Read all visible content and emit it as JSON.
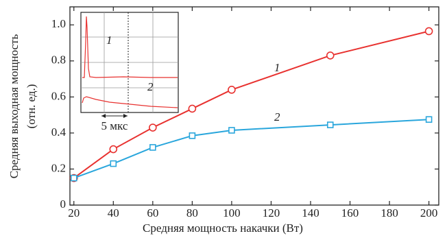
{
  "chart_data": {
    "type": "line",
    "xlabel": "Средняя мощность накачки (Вт)",
    "ylabel": [
      "Средняя выходная мощность",
      "(отн. ед.)"
    ],
    "series": [
      {
        "name": "1",
        "color": "#e8312f",
        "marker": "circle",
        "x": [
          20,
          40,
          60,
          80,
          100,
          150,
          200
        ],
        "values": [
          0.15,
          0.31,
          0.43,
          0.535,
          0.64,
          0.83,
          0.965
        ]
      },
      {
        "name": "2",
        "color": "#29a6dc",
        "marker": "square",
        "x": [
          20,
          40,
          60,
          80,
          100,
          150,
          200
        ],
        "values": [
          0.15,
          0.23,
          0.32,
          0.385,
          0.415,
          0.445,
          0.475
        ]
      }
    ],
    "xlim": [
      18,
      205
    ],
    "ylim": [
      0,
      1.1
    ],
    "xticks": [
      20,
      40,
      60,
      80,
      100,
      120,
      140,
      160,
      180,
      200
    ],
    "yticks": [
      0,
      0.2,
      0.4,
      0.6,
      0.8,
      {
        "value": 1,
        "label": "1.0"
      }
    ],
    "grid": false,
    "inset": {
      "trace_labels": [
        "1",
        "2"
      ],
      "scale_label": "5 мкс"
    }
  }
}
